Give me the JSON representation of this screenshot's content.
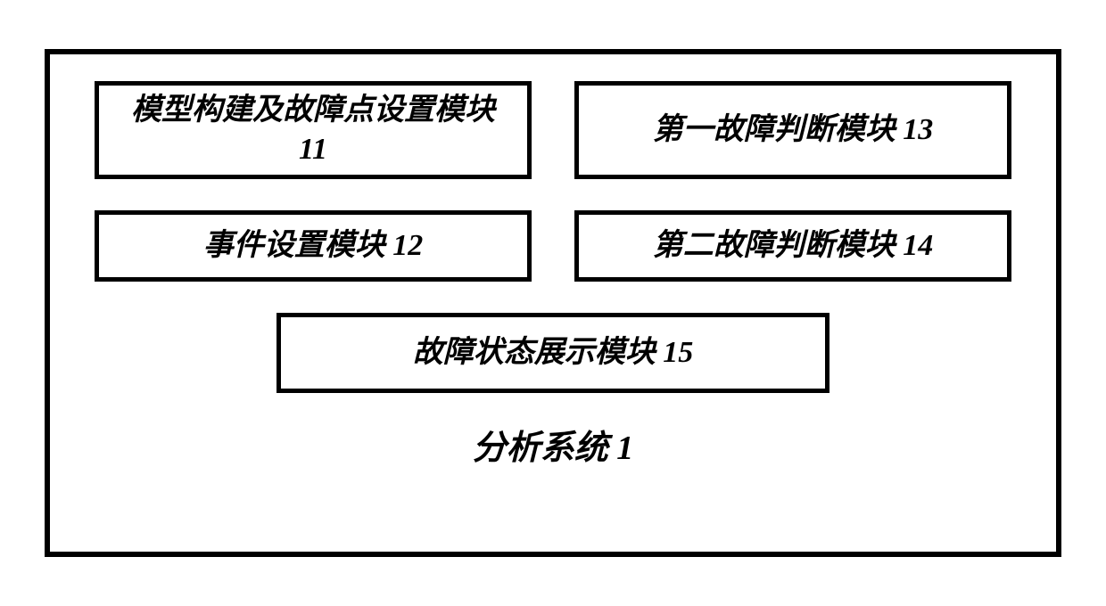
{
  "diagram": {
    "type": "block-diagram",
    "border_color": "#000000",
    "border_width_outer": 6,
    "border_width_inner": 5,
    "background_color": "#ffffff",
    "font_family": "KaiTi",
    "font_style": "italic",
    "font_weight": "bold",
    "module_fontsize": 34,
    "label_fontsize": 38,
    "modules": {
      "model_build": "模型构建及故障点设置模块11",
      "first_fault": "第一故障判断模块 13",
      "event_setting": "事件设置模块 12",
      "second_fault": "第二故障判断模块 14",
      "fault_status": "故障状态展示模块 15"
    },
    "system_label": "分析系统 1",
    "layout": {
      "outer_width": 1140,
      "outer_height": 570,
      "box_top_width": 490,
      "box_top_height": 110,
      "box_mid_width": 490,
      "box_mid_height": 80,
      "box_bottom_width": 620,
      "box_bottom_height": 90,
      "row_gap": 35
    }
  }
}
